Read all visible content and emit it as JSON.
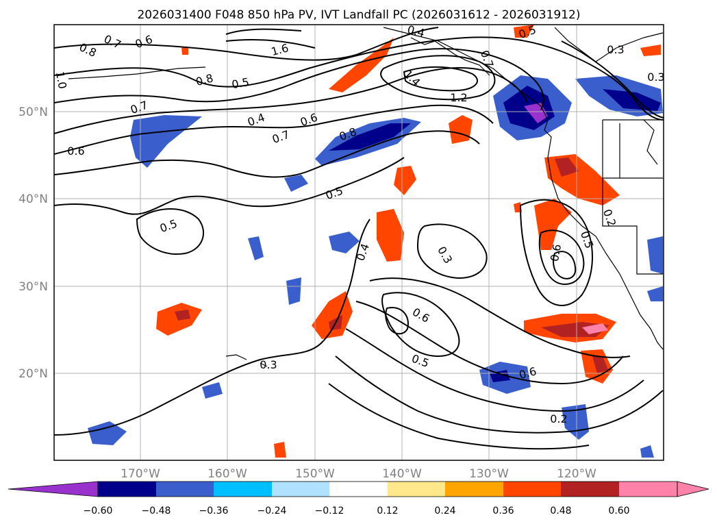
{
  "title": "2026031400 F048 850 hPa PV, IVT Landfall PC (2026031612 - 2026031912)",
  "map": {
    "lon_labels": [
      "170°W",
      "160°W",
      "150°W",
      "140°W",
      "130°W",
      "120°W"
    ],
    "lat_labels": [
      "50°N",
      "40°N",
      "30°N",
      "20°N"
    ],
    "contour_labels": [
      "0.8",
      "0.7",
      "0.6",
      "0.8",
      "0.5",
      "0.7",
      "0.4",
      "0.7",
      "0.6",
      "0.8",
      "0.6",
      "0.5",
      "0.5",
      "0.4",
      "0.3",
      "0.6",
      "0.5",
      "0.6",
      "0.3",
      "0.2",
      "0.6",
      "0.5",
      "0.2",
      "1.2",
      "1.4",
      "1.6",
      "0.4",
      "0.5",
      "0.3",
      "1.0",
      "0.7",
      "0.3"
    ]
  },
  "colorbar": {
    "ticks": [
      "−0.60",
      "−0.48",
      "−0.36",
      "−0.24",
      "−0.12",
      "0.12",
      "0.24",
      "0.36",
      "0.48",
      "0.60"
    ],
    "colors": [
      "#9932cc",
      "#00008b",
      "#3a5fcd",
      "#00bfff",
      "#b0e2ff",
      "#ffffff",
      "#ffe88c",
      "#ffa500",
      "#ff4500",
      "#b22222",
      "#ff82ab",
      "#ff82ab"
    ]
  }
}
